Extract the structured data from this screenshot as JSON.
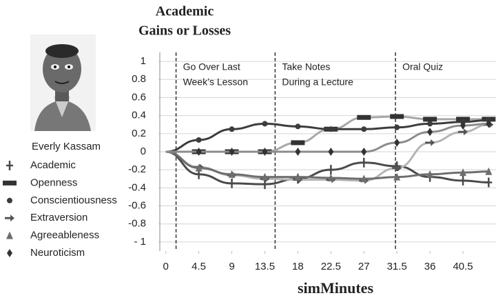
{
  "chart_data": {
    "type": "line",
    "title_lines": [
      "Academic",
      "Gains or Losses"
    ],
    "character": "Everly Kassam",
    "x_label": "simMinutes",
    "x": [
      0,
      4.5,
      9,
      13.5,
      18,
      22.5,
      27,
      31.5,
      36,
      40.5,
      44
    ],
    "xlim": [
      -1,
      45
    ],
    "xticks": [
      0,
      4.5,
      9,
      13.5,
      18,
      22.5,
      27,
      31.5,
      36,
      40.5
    ],
    "ylim": [
      -1.1,
      1.1
    ],
    "yticks": [
      1,
      0.8,
      0.6,
      0.4,
      0.2,
      0,
      -0.2,
      -0.4,
      -0.6,
      -0.8,
      {
        "value": -1,
        "label": "- 1"
      }
    ],
    "grid": true,
    "phases": [
      {
        "x": 1.4,
        "lines": [
          "Go Over Last",
          "Week’s Lesson"
        ]
      },
      {
        "x": 14.9,
        "lines": [
          "Take Notes",
          "During a Lecture"
        ]
      },
      {
        "x": 31.3,
        "lines": [
          "Oral Quiz"
        ]
      }
    ],
    "series": [
      {
        "name": "Academic",
        "marker": "plus",
        "color": "#4a4a4a",
        "values": [
          0,
          -0.25,
          -0.35,
          -0.36,
          -0.3,
          -0.2,
          -0.12,
          -0.16,
          -0.28,
          -0.32,
          -0.34
        ]
      },
      {
        "name": "Openness",
        "marker": "dash",
        "color": "#a8a8a8",
        "values": [
          0,
          0,
          0,
          0,
          0.1,
          0.25,
          0.38,
          0.39,
          0.36,
          0.36,
          0.36
        ]
      },
      {
        "name": "Conscientiousness",
        "marker": "circle",
        "color": "#3c3c3c",
        "values": [
          0,
          0.13,
          0.25,
          0.31,
          0.28,
          0.25,
          0.25,
          0.27,
          0.31,
          0.33,
          0.35
        ]
      },
      {
        "name": "Extraversion",
        "marker": "arrow",
        "color": "#b4b4b4",
        "values": [
          0,
          -0.17,
          -0.26,
          -0.3,
          -0.31,
          -0.31,
          -0.32,
          -0.18,
          0.1,
          0.22,
          0.3
        ]
      },
      {
        "name": "Agreeableness",
        "marker": "triangle",
        "color": "#6e6e6e",
        "values": [
          0,
          -0.18,
          -0.25,
          -0.28,
          -0.28,
          -0.29,
          -0.3,
          -0.28,
          -0.25,
          -0.23,
          -0.22
        ]
      },
      {
        "name": "Neuroticism",
        "marker": "diamond",
        "color": "#8c8c8c",
        "values": [
          0,
          0,
          0,
          0,
          0,
          0,
          0,
          0.1,
          0.22,
          0.29,
          0.31
        ]
      }
    ]
  }
}
